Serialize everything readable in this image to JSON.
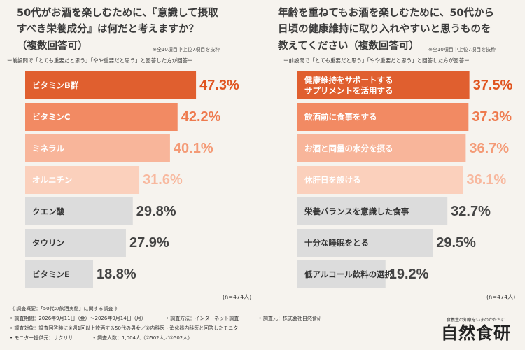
{
  "colors": {
    "bar_top1": "#e05f2f",
    "bar_top2": "#f28a63",
    "bar_top3": "#f8b59a",
    "bar_top4": "#fbd0bc",
    "bar_rest": "#dcdcdc",
    "value_top1": "#e0541f",
    "value_top2": "#ee7a4e",
    "value_top3": "#f49a76",
    "value_top4": "#f8b89e",
    "value_rest": "#444444",
    "label_light": "#ffffff",
    "label_dark": "#333333"
  },
  "left": {
    "title_lines": [
      "50代がお酒を楽しむために、『意識して摂取",
      "すべき栄養成分』は何だと考えますか？",
      "（複数回答可）"
    ],
    "note": "※全10項目中上位7項目を抜粋",
    "subtitle": "ー前設問で「とても重要だと思う」「やや重要だと思う」と回答した方が回答ー",
    "n_label": "(n=474人)"
  },
  "right": {
    "title_lines": [
      "年齢を重ねてもお酒を楽しむために、50代から",
      "日頃の健康維持に取り入れやすいと思うものを",
      "教えてください（複数回答可）"
    ],
    "note": "※全10項目中上位7項目を抜粋",
    "subtitle": "ー前設問で「とても重要だと思う」「やや重要だと思う」と回答した方が回答ー",
    "n_label": "(n=474人)"
  },
  "chart_data": [
    {
      "type": "bar",
      "orientation": "horizontal",
      "categories": [
        "ビタミンB群",
        "ビタミンC",
        "ミネラル",
        "オルニチン",
        "クエン酸",
        "タウリン",
        "ビタミンE"
      ],
      "values": [
        47.3,
        42.2,
        40.1,
        31.6,
        29.8,
        27.9,
        18.8
      ],
      "value_labels": [
        "47.3%",
        "42.2%",
        "40.1%",
        "31.6%",
        "29.8%",
        "27.9%",
        "18.8%"
      ],
      "xlim": [
        0,
        50
      ]
    },
    {
      "type": "bar",
      "orientation": "horizontal",
      "categories": [
        [
          "健康維持をサポートする",
          "サプリメントを活用する"
        ],
        [
          "飲酒前に食事をする"
        ],
        [
          "お酒と同量の水分を摂る"
        ],
        [
          "休肝日を設ける"
        ],
        [
          "栄養バランスを意識した食事"
        ],
        [
          "十分な睡眠をとる"
        ],
        [
          "低アルコール飲料の選択"
        ]
      ],
      "values": [
        37.5,
        37.3,
        36.7,
        36.1,
        32.7,
        29.5,
        19.2
      ],
      "value_labels": [
        "37.5%",
        "37.3%",
        "36.7%",
        "36.1%",
        "32.7%",
        "29.5%",
        "19.2%"
      ],
      "xlim": [
        0,
        40
      ]
    }
  ],
  "footer": {
    "lines": [
      [
        "《 調査概要：「50代の飲酒実態」に関する調査 》"
      ],
      [
        "• 調査期間：2026年9月11日（金）〜2026年9月14日（月）",
        "• 調査方法：インターネット調査",
        "• 調査元：株式会社自然食研"
      ],
      [
        "• 調査対象：調査回答時に①週1回以上飲酒する50代の男女／②内科医・消化器内科医と回答したモニター"
      ],
      [
        "• モニター提供元：サクリサ",
        "• 調査人数：1,004人（①502人／②502人）"
      ]
    ]
  },
  "brand": {
    "tagline": "食養生の知恵をいまのかたちに",
    "name": "自然食研"
  }
}
